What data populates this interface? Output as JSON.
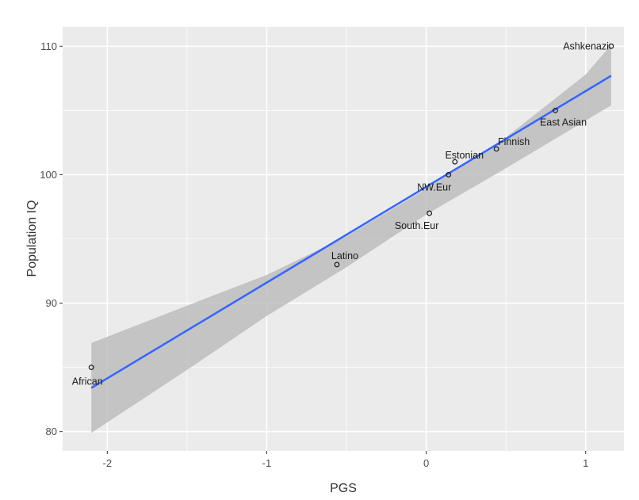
{
  "chart_data": {
    "type": "scatter",
    "title": "",
    "xlabel": "PGS",
    "ylabel": "Population IQ",
    "xlim": [
      -2.28,
      1.24
    ],
    "ylim": [
      78.5,
      111.5
    ],
    "x_ticks": [
      -2,
      -1,
      0,
      1
    ],
    "y_ticks": [
      80,
      90,
      100,
      110
    ],
    "x_tick_labels": [
      "-2",
      "-1",
      "0",
      "1"
    ],
    "y_tick_labels": [
      "80",
      "90",
      "100",
      "110"
    ],
    "grid": true,
    "legend": "none",
    "points": [
      {
        "label": "Ashkenazi",
        "x": 1.16,
        "y": 110
      },
      {
        "label": "East Asian",
        "x": 0.81,
        "y": 105
      },
      {
        "label": "Finnish",
        "x": 0.44,
        "y": 102
      },
      {
        "label": "Estonian",
        "x": 0.18,
        "y": 101
      },
      {
        "label": "NW.Eur",
        "x": 0.14,
        "y": 100
      },
      {
        "label": "South.Eur",
        "x": 0.02,
        "y": 97
      },
      {
        "label": "Latino",
        "x": -0.56,
        "y": 93
      },
      {
        "label": "African",
        "x": -2.1,
        "y": 85
      }
    ],
    "fit_line": {
      "x": [
        -2.1,
        1.16
      ],
      "y": [
        83.4,
        107.7
      ]
    },
    "confidence_band": {
      "x": [
        -2.1,
        -1.5,
        -1.0,
        -0.5,
        0.0,
        0.5,
        1.0,
        1.16
      ],
      "lower": [
        79.9,
        84.8,
        89.0,
        92.8,
        96.9,
        100.5,
        104.2,
        105.4
      ],
      "upper": [
        86.9,
        89.8,
        92.2,
        95.2,
        98.9,
        102.9,
        107.8,
        110.1
      ]
    },
    "colors": {
      "panel": "#ebebeb",
      "grid": "#ffffff",
      "line": "#3366ff",
      "band": "#bdbdbd"
    }
  }
}
